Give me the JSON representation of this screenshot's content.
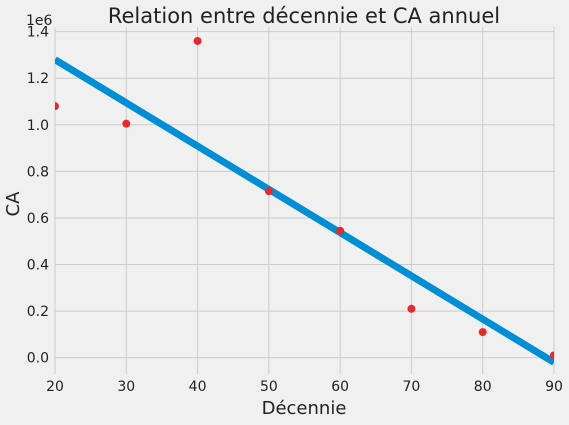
{
  "chart_data": {
    "type": "scatter",
    "title": "Relation entre décennie et CA annuel",
    "xlabel": "Décennie",
    "ylabel": "CA",
    "y_offset_label": "1e6",
    "xlim": [
      20,
      90
    ],
    "ylim": [
      -0.07,
      1.42
    ],
    "x_ticks": [
      20,
      30,
      40,
      50,
      60,
      70,
      80,
      90
    ],
    "x_tick_labels": [
      "20",
      "30",
      "40",
      "50",
      "60",
      "70",
      "80",
      "90"
    ],
    "y_ticks": [
      0.0,
      0.2,
      0.4,
      0.6,
      0.8,
      1.0,
      1.2,
      1.4
    ],
    "y_tick_labels": [
      "0.0",
      "0.2",
      "0.4",
      "0.6",
      "0.8",
      "1.0",
      "1.2",
      "1.4"
    ],
    "grid": true,
    "series": [
      {
        "kind": "scatter",
        "color": "#e8282b",
        "x": [
          20,
          30,
          40,
          50,
          60,
          70,
          80,
          90
        ],
        "y": [
          1.08,
          1.005,
          1.36,
          0.715,
          0.545,
          0.21,
          0.11,
          0.01
        ]
      },
      {
        "kind": "line",
        "color": "#008fd5",
        "x": [
          20,
          90
        ],
        "y": [
          1.28,
          -0.02
        ]
      }
    ]
  }
}
